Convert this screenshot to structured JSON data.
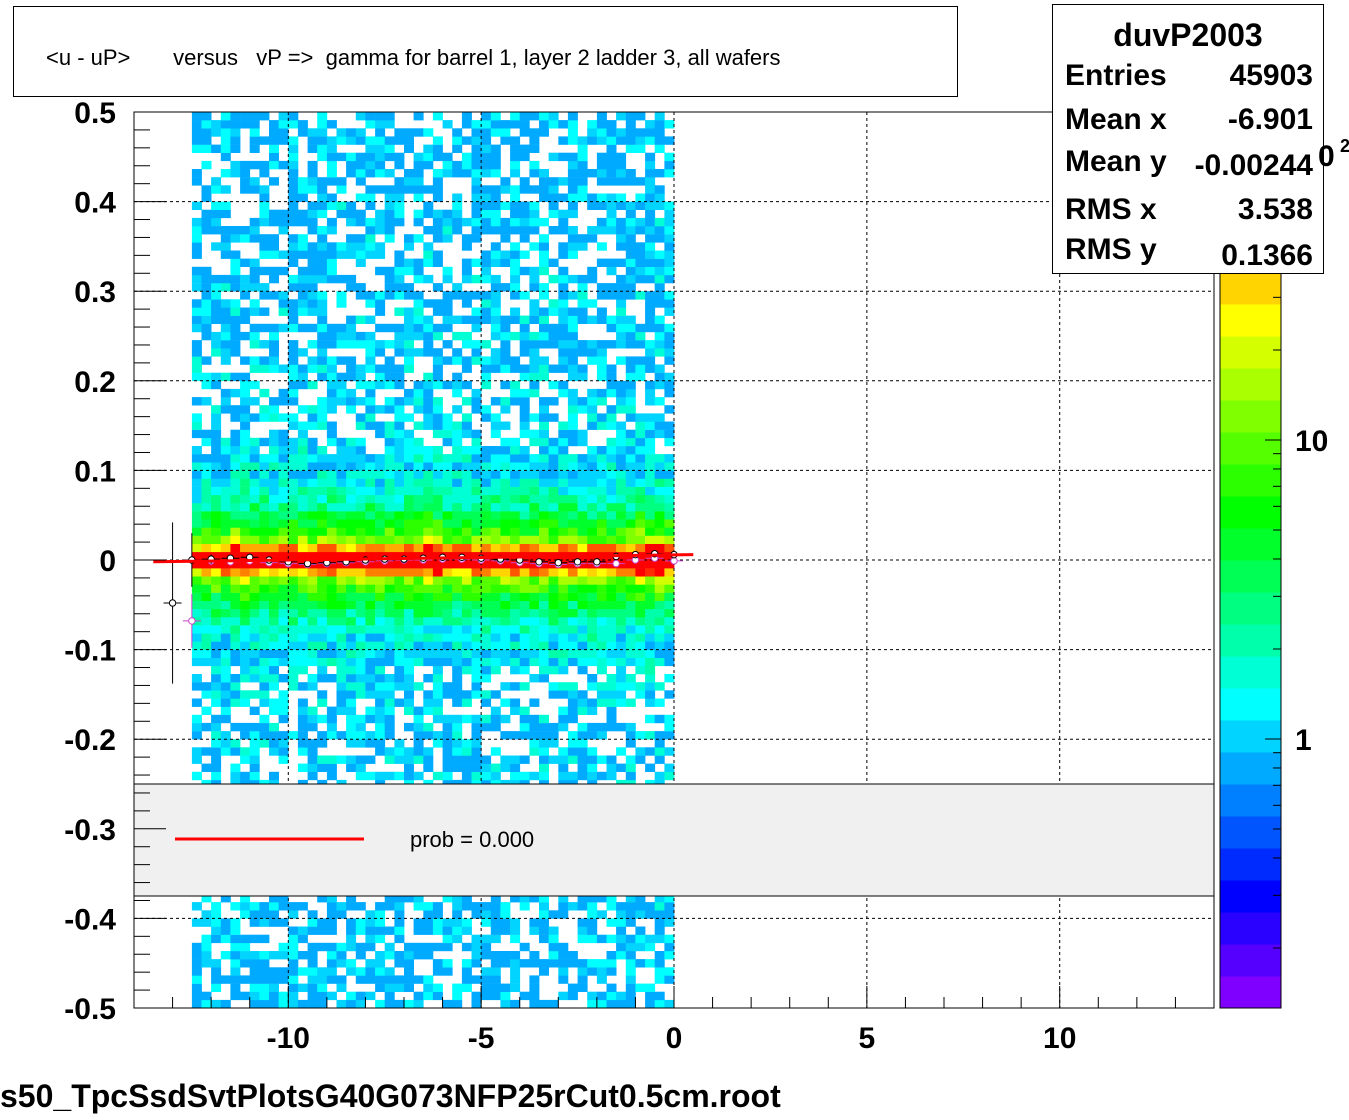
{
  "title": "<u - uP>       versus   vP =>  gamma for barrel 1, layer 2 ladder 3, all wafers",
  "footer": "s50_TpcSsdSvtPlotsG40G073NFP25rCut0.5cm.root",
  "stats": {
    "name": "duvP2003",
    "rows": [
      {
        "label": "Entries",
        "value": "45903"
      },
      {
        "label": "Mean x",
        "value": "-6.901"
      },
      {
        "label": "Mean y",
        "value": "-0.00244"
      },
      {
        "label": "RMS x",
        "value": "3.538"
      },
      {
        "label": "RMS y",
        "value": "0.1366"
      }
    ]
  },
  "palette_exponent_fragment": "0",
  "palette_exponent_sup": "2",
  "legend": {
    "label": "prob = 0.000",
    "line_color": "#ff0000"
  },
  "colors": {
    "palette": [
      "#7f00ff",
      "#5500ff",
      "#2a00ff",
      "#0000ff",
      "#002bff",
      "#0055ff",
      "#0080ff",
      "#00aaff",
      "#00d4ff",
      "#00ffff",
      "#00ffd4",
      "#00ffaa",
      "#00ff80",
      "#00ff55",
      "#00ff2b",
      "#00ff00",
      "#2bff00",
      "#55ff00",
      "#80ff00",
      "#aaff00",
      "#d4ff00",
      "#ffff00",
      "#ffd400",
      "#ffaa00",
      "#ff8000",
      "#ff5500",
      "#ff2b00",
      "#ff0000"
    ],
    "fit_line": "#ff0000",
    "legend_bg": "#f0f0f0"
  },
  "chart_data": {
    "type": "heatmap",
    "xlim": [
      -14,
      14
    ],
    "ylim": [
      -0.5,
      0.5
    ],
    "x_ticks": [
      "-10",
      "-5",
      "0",
      "5",
      "10"
    ],
    "x_tick_values": [
      -10,
      -5,
      0,
      5,
      10
    ],
    "y_ticks": [
      "0.5",
      "0.4",
      "0.3",
      "0.2",
      "0.1",
      "0",
      "-0.1",
      "-0.2",
      "-0.3",
      "-0.4",
      "-0.5"
    ],
    "y_tick_values": [
      0.5,
      0.4,
      0.3,
      0.2,
      0.1,
      0,
      -0.1,
      -0.2,
      -0.3,
      -0.4,
      -0.5
    ],
    "grid": true,
    "data_x_range": [
      -12.5,
      0
    ],
    "z_axis": {
      "scale": "log",
      "tick_labels": [
        "1",
        "10"
      ],
      "tick_values": [
        1,
        10
      ]
    },
    "profile_black": {
      "x": [
        -13,
        -12.5,
        -12,
        -11.5,
        -11,
        -10.5,
        -10,
        -9.5,
        -9,
        -8.5,
        -8,
        -7.5,
        -7,
        -6.5,
        -6,
        -5.5,
        -5,
        -4.5,
        -4,
        -3.5,
        -3,
        -2.5,
        -2,
        -1.5,
        -1,
        -0.5,
        0
      ],
      "y": [
        -0.048,
        0.0,
        0.001,
        0.002,
        0.003,
        0.0,
        -0.002,
        -0.004,
        -0.003,
        -0.002,
        0.0,
        0.001,
        0.001,
        0.002,
        0.003,
        0.003,
        0.002,
        0.001,
        0.0,
        -0.002,
        -0.003,
        -0.002,
        -0.002,
        0.004,
        0.006,
        0.007,
        0.006
      ],
      "yerr": [
        0.09,
        0.03,
        0.005,
        0.004,
        0.004,
        0.004,
        0.004,
        0.004,
        0.004,
        0.004,
        0.004,
        0.004,
        0.004,
        0.004,
        0.004,
        0.004,
        0.004,
        0.004,
        0.004,
        0.004,
        0.004,
        0.004,
        0.004,
        0.004,
        0.004,
        0.004,
        0.004
      ]
    },
    "profile_pink": {
      "x": [
        -12.5,
        -12,
        -11.5,
        -11,
        -10.5,
        -10,
        -9.5,
        -9,
        -8.5,
        -8,
        -7.5,
        -7,
        -6.5,
        -6,
        -5.5,
        -5,
        -4.5,
        -4,
        -3.5,
        -3,
        -2.5,
        -2,
        -1.5,
        -1,
        -0.5,
        0
      ],
      "y": [
        -0.068,
        -0.001,
        -0.002,
        -0.001,
        -0.003,
        -0.004,
        -0.005,
        -0.004,
        -0.003,
        -0.002,
        -0.001,
        0.0,
        0.0,
        0.001,
        0.001,
        0.0,
        -0.001,
        -0.003,
        -0.004,
        -0.005,
        -0.004,
        -0.004,
        -0.004,
        0.0,
        0.002,
        -0.001
      ],
      "yerr": [
        0.03,
        0.005,
        0.004,
        0.004,
        0.004,
        0.004,
        0.004,
        0.004,
        0.004,
        0.004,
        0.004,
        0.004,
        0.004,
        0.004,
        0.004,
        0.004,
        0.004,
        0.004,
        0.004,
        0.004,
        0.004,
        0.004,
        0.004,
        0.004,
        0.004,
        0.004
      ]
    },
    "fit_line": {
      "x": [
        -13.5,
        0.5
      ],
      "y": [
        -0.002,
        0.006
      ]
    }
  }
}
